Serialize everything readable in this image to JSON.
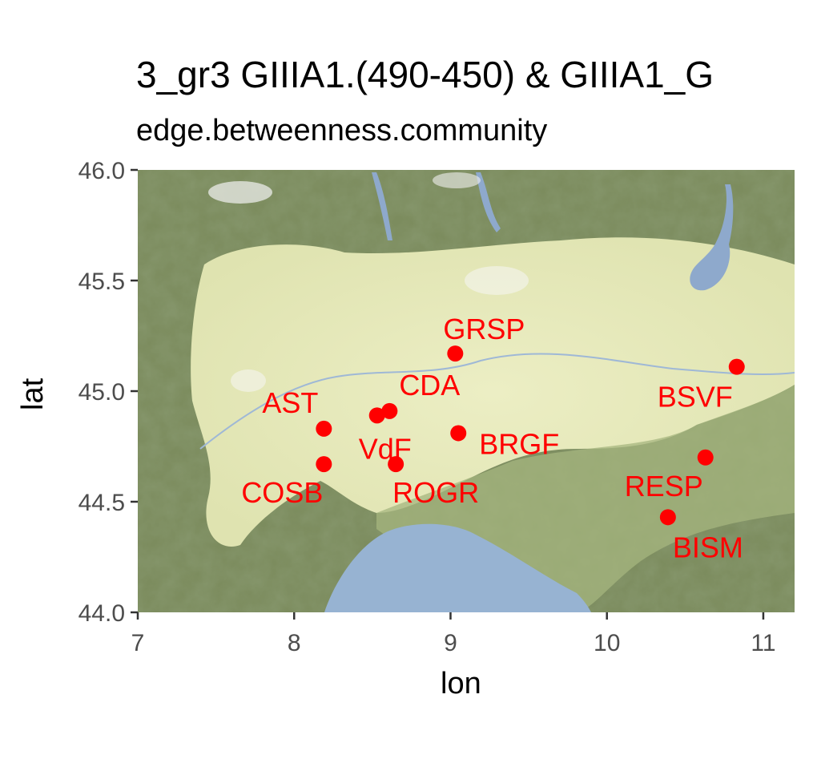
{
  "title": "3_gr3 GIIIA1.(490-450) & GIIIA1_G",
  "subtitle": "edge.betweenness.community",
  "colors": {
    "point": "#ff0000",
    "label": "#ff0000",
    "plain": "#e3e6b8",
    "hills": "#8fa56e",
    "mountain": "#6f7f55",
    "sea": "#97b3d2",
    "lake": "#8ea9cc"
  },
  "chart_data": {
    "type": "scatter",
    "xlabel": "lon",
    "ylabel": "lat",
    "xlim": [
      7,
      11.2
    ],
    "ylim": [
      44,
      46
    ],
    "x_ticks": [
      7,
      8,
      9,
      10,
      11
    ],
    "y_ticks": [
      44.0,
      44.5,
      45.0,
      45.5,
      46.0
    ],
    "x_tick_labels": [
      "7",
      "8",
      "9",
      "10",
      "11"
    ],
    "y_tick_labels": [
      "44.0",
      "44.5",
      "45.0",
      "45.5",
      "46.0"
    ],
    "grid": false,
    "points": [
      {
        "label": "GRSP",
        "lon": 9.03,
        "lat": 45.17
      },
      {
        "label": "CDA",
        "lon": 8.61,
        "lat": 44.91
      },
      {
        "label": "VdF",
        "lon": 8.53,
        "lat": 44.89
      },
      {
        "label": "AST",
        "lon": 8.19,
        "lat": 44.83
      },
      {
        "label": "COSB",
        "lon": 8.19,
        "lat": 44.67
      },
      {
        "label": "ROGR",
        "lon": 8.65,
        "lat": 44.67
      },
      {
        "label": "BRGF",
        "lon": 9.05,
        "lat": 44.81
      },
      {
        "label": "BSVF",
        "lon": 10.83,
        "lat": 45.11
      },
      {
        "label": "RESP",
        "lon": 10.63,
        "lat": 44.7
      },
      {
        "label": "BISM",
        "lon": 10.39,
        "lat": 44.43
      }
    ]
  }
}
